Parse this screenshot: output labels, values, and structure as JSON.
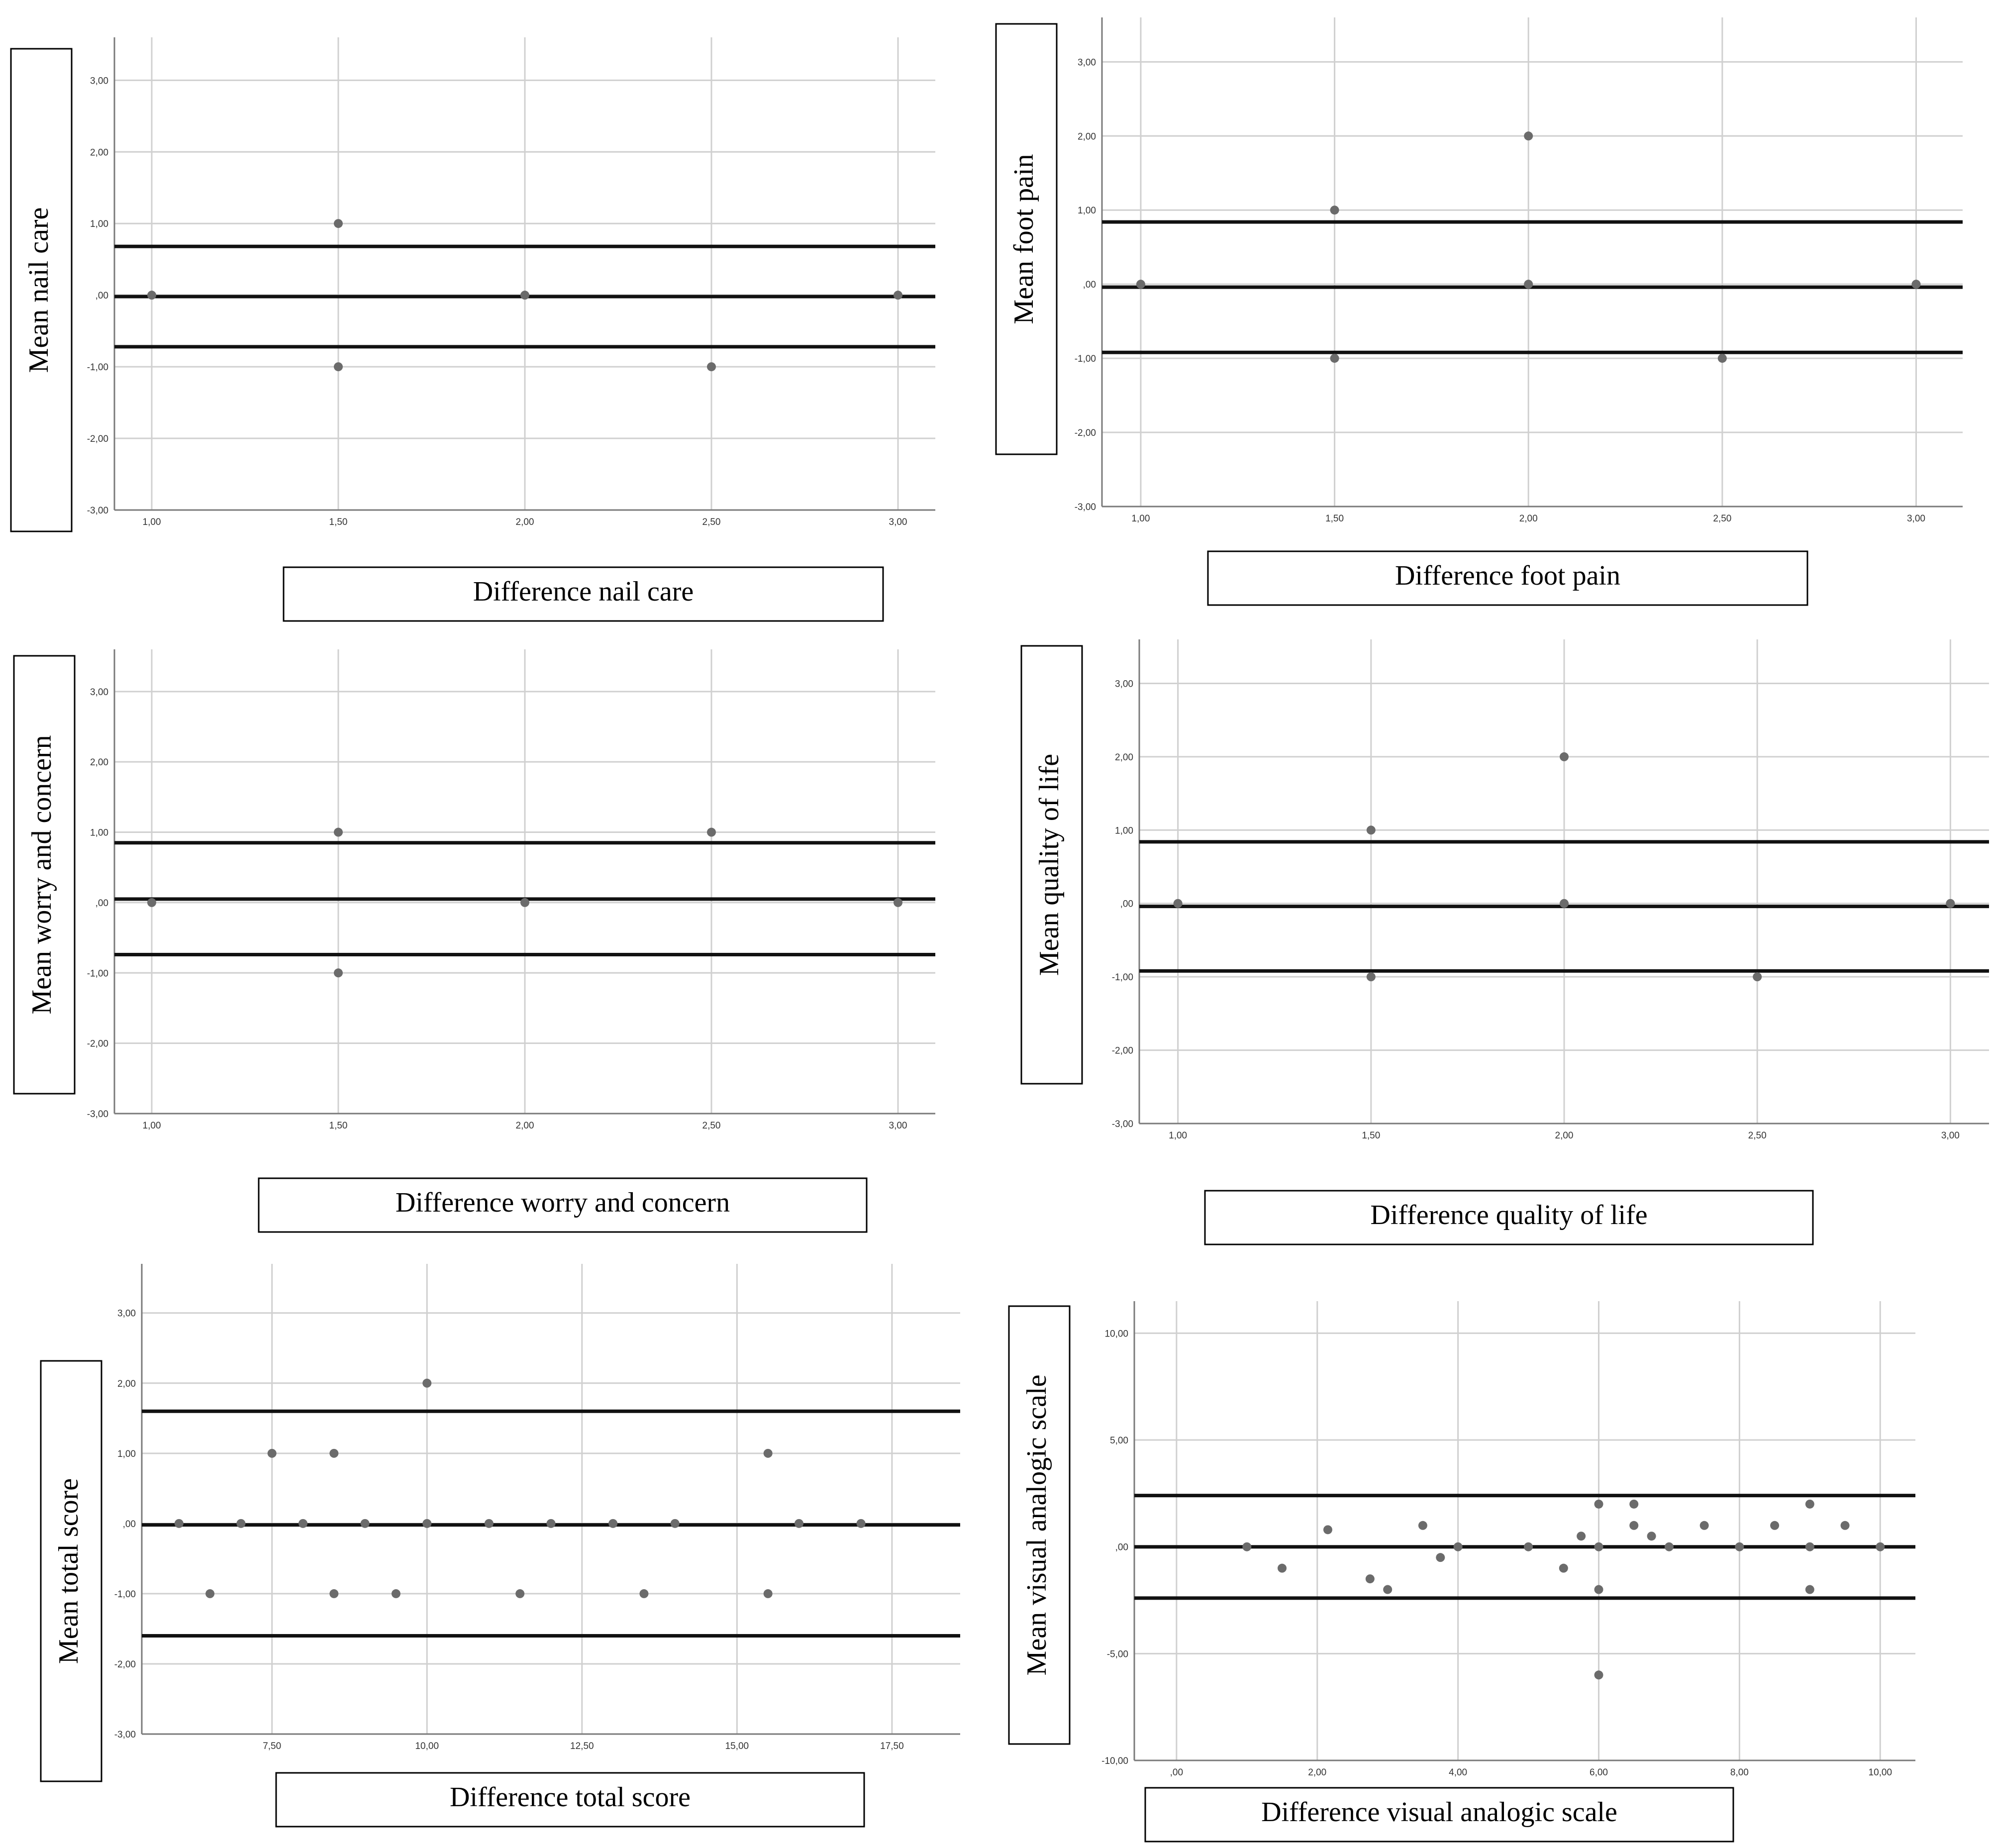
{
  "chart_data": [
    {
      "type": "scatter",
      "title": "",
      "xlabel": "Difference nail care",
      "ylabel": "Mean nail care",
      "xlim": [
        0.9,
        3.1
      ],
      "ylim": [
        -3,
        3.6
      ],
      "xticks": [
        "1,00",
        "1,50",
        "2,00",
        "2,50",
        "3,00"
      ],
      "yticks": [
        "3,00",
        "2,00",
        "1,00",
        ",00",
        "-1,00",
        "-2,00",
        "-3,00"
      ],
      "points": [
        [
          1.0,
          0
        ],
        [
          1.5,
          1
        ],
        [
          1.5,
          -1
        ],
        [
          2.0,
          0
        ],
        [
          2.5,
          -1
        ],
        [
          3.0,
          0
        ]
      ],
      "hlines": [
        0.68,
        -0.02,
        -0.72
      ],
      "grid": true
    },
    {
      "type": "scatter",
      "title": "",
      "xlabel": "Difference foot pain",
      "ylabel": "Mean foot pain",
      "xlim": [
        0.9,
        3.12
      ],
      "ylim": [
        -3,
        3.6
      ],
      "xticks": [
        "1,00",
        "1,50",
        "2,00",
        "2,50",
        "3,00"
      ],
      "yticks": [
        "3,00",
        "2,00",
        "1,00",
        ",00",
        "-1,00",
        "-2,00",
        "-3,00"
      ],
      "points": [
        [
          1.0,
          0
        ],
        [
          1.5,
          1
        ],
        [
          1.5,
          -1
        ],
        [
          2.0,
          2
        ],
        [
          2.0,
          0
        ],
        [
          2.5,
          -1
        ],
        [
          3.0,
          0
        ]
      ],
      "hlines": [
        0.84,
        -0.04,
        -0.92
      ],
      "grid": true
    },
    {
      "type": "scatter",
      "title": "",
      "xlabel": "Difference worry and concern",
      "ylabel": "Mean worry and concern",
      "xlim": [
        0.9,
        3.1
      ],
      "ylim": [
        -3,
        3.6
      ],
      "xticks": [
        "1,00",
        "1,50",
        "2,00",
        "2,50",
        "3,00"
      ],
      "yticks": [
        "3,00",
        "2,00",
        "1,00",
        ",00",
        "-1,00",
        "-2,00",
        "-3,00"
      ],
      "points": [
        [
          1.0,
          0
        ],
        [
          1.5,
          1
        ],
        [
          1.5,
          -1
        ],
        [
          2.0,
          0
        ],
        [
          2.5,
          1
        ],
        [
          3.0,
          0
        ]
      ],
      "hlines": [
        0.85,
        0.05,
        -0.74
      ],
      "grid": true
    },
    {
      "type": "scatter",
      "title": "",
      "xlabel": "Difference quality of life",
      "ylabel": "Mean quality of life",
      "xlim": [
        0.9,
        3.1
      ],
      "ylim": [
        -3,
        3.6
      ],
      "xticks": [
        "1,00",
        "1,50",
        "2,00",
        "2,50",
        "3,00"
      ],
      "yticks": [
        "3,00",
        "2,00",
        "1,00",
        ",00",
        "-1,00",
        "-2,00",
        "-3,00"
      ],
      "points": [
        [
          1.0,
          0
        ],
        [
          1.5,
          1
        ],
        [
          1.5,
          -1
        ],
        [
          2.0,
          2
        ],
        [
          2.0,
          0
        ],
        [
          2.5,
          -1
        ],
        [
          3.0,
          0
        ]
      ],
      "hlines": [
        0.84,
        -0.04,
        -0.92
      ],
      "grid": true
    },
    {
      "type": "scatter",
      "title": "",
      "xlabel": "Difference total score",
      "ylabel": "Mean total score",
      "xlim": [
        5.4,
        18.6
      ],
      "ylim": [
        -3,
        3.7
      ],
      "xticks": [
        "7,50",
        "10,00",
        "12,50",
        "15,00",
        "17,50"
      ],
      "xtick_values": [
        7.5,
        10,
        12.5,
        15,
        17.5
      ],
      "yticks": [
        "3,00",
        "2,00",
        "1,00",
        ",00",
        "-1,00",
        "-2,00",
        "-3,00"
      ],
      "points": [
        [
          6.0,
          0
        ],
        [
          6.5,
          -1
        ],
        [
          7.0,
          0
        ],
        [
          7.5,
          1
        ],
        [
          8.0,
          0
        ],
        [
          8.5,
          1
        ],
        [
          8.5,
          -1
        ],
        [
          9.0,
          0
        ],
        [
          9.5,
          -1
        ],
        [
          10.0,
          2
        ],
        [
          10.0,
          0
        ],
        [
          11.0,
          0
        ],
        [
          11.5,
          -1
        ],
        [
          12.0,
          0
        ],
        [
          13.0,
          0
        ],
        [
          13.5,
          -1
        ],
        [
          14.0,
          0
        ],
        [
          15.5,
          1
        ],
        [
          15.5,
          -1
        ],
        [
          16.0,
          0
        ],
        [
          17.0,
          0
        ]
      ],
      "hlines": [
        1.6,
        -0.02,
        -1.6
      ],
      "grid": true
    },
    {
      "type": "scatter",
      "title": "",
      "xlabel": "Difference visual analogic scale",
      "ylabel": "Mean visual analogic scale",
      "xlim": [
        -0.6,
        10.5
      ],
      "ylim": [
        -10,
        11.5
      ],
      "xticks": [
        ",00",
        "2,00",
        "4,00",
        "6,00",
        "8,00",
        "10,00"
      ],
      "xtick_values": [
        0,
        2,
        4,
        6,
        8,
        10
      ],
      "yticks": [
        "10,00",
        "5,00",
        ",00",
        "-5,00",
        "-10,00"
      ],
      "ytick_values": [
        10,
        5,
        0,
        -5,
        -10
      ],
      "points": [
        [
          1.0,
          0
        ],
        [
          1.5,
          -1
        ],
        [
          2.15,
          0.8
        ],
        [
          2.75,
          -1.5
        ],
        [
          3.0,
          -2
        ],
        [
          3.5,
          1
        ],
        [
          3.75,
          -0.5
        ],
        [
          4.0,
          0
        ],
        [
          5.0,
          0
        ],
        [
          5.5,
          -1
        ],
        [
          5.75,
          0.5
        ],
        [
          6.0,
          2
        ],
        [
          6.0,
          0
        ],
        [
          6.0,
          -2
        ],
        [
          6.0,
          -6
        ],
        [
          6.5,
          2
        ],
        [
          6.5,
          1
        ],
        [
          6.75,
          0.5
        ],
        [
          7.0,
          0
        ],
        [
          7.5,
          1
        ],
        [
          8.0,
          0
        ],
        [
          8.5,
          1
        ],
        [
          9.0,
          2
        ],
        [
          9.0,
          0
        ],
        [
          9.0,
          -2
        ],
        [
          9.5,
          1
        ],
        [
          10.0,
          0
        ]
      ],
      "hlines": [
        2.4,
        0,
        -2.4
      ],
      "grid": true
    }
  ]
}
